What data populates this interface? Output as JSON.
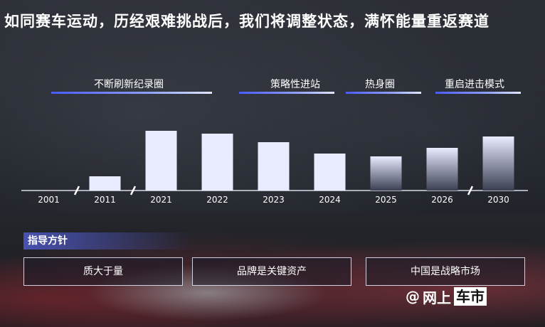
{
  "headline": "如同赛车运动，历经艰难挑战后，我们将调整状态，满怀能量重返赛道",
  "phases": [
    {
      "label": "不断刷新纪录圈"
    },
    {
      "label": "策略性进站"
    },
    {
      "label": "热身圈"
    },
    {
      "label": "重启进击模式"
    }
  ],
  "chart_data": {
    "type": "bar",
    "categories": [
      "2001",
      "2011",
      "2021",
      "2022",
      "2023",
      "2024",
      "2025",
      "2026",
      "2030"
    ],
    "values": [
      0,
      5,
      21,
      20,
      17,
      13,
      12,
      15,
      19
    ],
    "axis_breaks_after": [
      "2001",
      "2011",
      "2026"
    ],
    "projected_categories": [
      "2025",
      "2026",
      "2030"
    ],
    "xlabel": "",
    "ylabel": "",
    "grid": false,
    "bar_color": "#e9ebff",
    "projected_top_color": "#e9ebff",
    "projected_bottom_color": "#3a3f52"
  },
  "guidance": {
    "title": "指导方针",
    "items": [
      "质大于量",
      "品牌是关键资产",
      "中国是战略市场"
    ]
  },
  "watermark": {
    "at": "@",
    "text_plain": "网上",
    "text_boxed": "车市"
  },
  "colors": {
    "accent": "#6a7bff",
    "bar": "#e9ebff"
  }
}
